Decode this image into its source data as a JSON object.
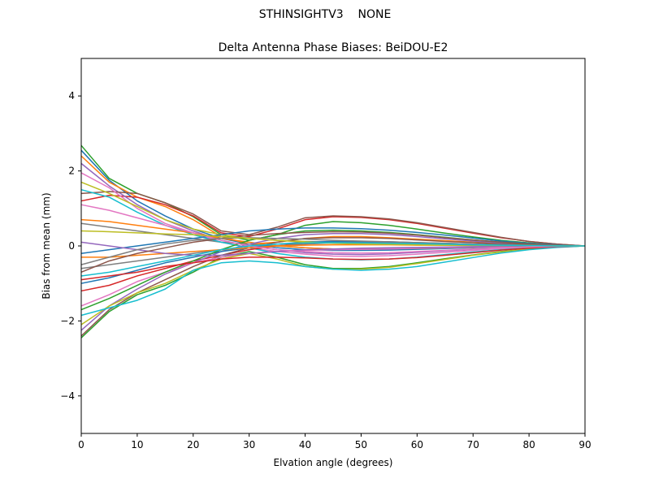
{
  "figure": {
    "suptitle": "STHINSIGHTV3    NONE"
  },
  "chart_data": {
    "type": "line",
    "title": "Delta Antenna Phase Biases: BeiDOU-E2",
    "xlabel": "Elvation angle (degrees)",
    "ylabel": "Bias from mean (mm)",
    "xlim": [
      0,
      90
    ],
    "ylim": [
      -5,
      5
    ],
    "xticks": [
      "0",
      "10",
      "20",
      "30",
      "40",
      "50",
      "60",
      "70",
      "80",
      "90"
    ],
    "yticks": [
      "4",
      "2",
      "0",
      "−2",
      "−4"
    ],
    "grid": false,
    "legend": "none",
    "x": [
      0,
      5,
      10,
      15,
      20,
      25,
      30,
      35,
      40,
      45,
      50,
      55,
      60,
      65,
      70,
      75,
      80,
      85,
      90
    ],
    "series": [
      {
        "color": "#1f77b4",
        "values": [
          2.55,
          1.75,
          1.2,
          0.8,
          0.45,
          0.2,
          0.05,
          -0.05,
          -0.1,
          -0.12,
          -0.12,
          -0.11,
          -0.09,
          -0.07,
          -0.05,
          -0.03,
          -0.02,
          -0.01,
          0
        ]
      },
      {
        "color": "#ff7f0e",
        "values": [
          2.4,
          1.7,
          1.3,
          1.05,
          0.7,
          0.25,
          0.05,
          0.1,
          0.2,
          0.25,
          0.25,
          0.22,
          0.18,
          0.14,
          0.1,
          0.06,
          0.03,
          0.01,
          0
        ]
      },
      {
        "color": "#2ca02c",
        "values": [
          2.68,
          1.8,
          1.4,
          1.15,
          0.78,
          0.3,
          0.15,
          0.3,
          0.55,
          0.65,
          0.62,
          0.55,
          0.45,
          0.34,
          0.24,
          0.15,
          0.08,
          0.03,
          0
        ]
      },
      {
        "color": "#d62728",
        "values": [
          1.2,
          1.35,
          1.3,
          1.1,
          0.8,
          0.35,
          0.25,
          0.45,
          0.7,
          0.78,
          0.76,
          0.7,
          0.6,
          0.47,
          0.34,
          0.22,
          0.12,
          0.05,
          0
        ]
      },
      {
        "color": "#9467bd",
        "values": [
          2.2,
          1.6,
          1.1,
          0.7,
          0.4,
          0.15,
          0.0,
          -0.1,
          -0.18,
          -0.22,
          -0.23,
          -0.21,
          -0.17,
          -0.13,
          -0.09,
          -0.05,
          -0.03,
          -0.01,
          0
        ]
      },
      {
        "color": "#8c564b",
        "values": [
          1.4,
          1.45,
          1.4,
          1.15,
          0.85,
          0.4,
          0.3,
          0.5,
          0.75,
          0.8,
          0.78,
          0.72,
          0.62,
          0.49,
          0.36,
          0.23,
          0.12,
          0.05,
          0
        ]
      },
      {
        "color": "#e377c2",
        "values": [
          1.95,
          1.55,
          1.0,
          0.6,
          0.35,
          0.1,
          -0.05,
          -0.15,
          -0.22,
          -0.27,
          -0.28,
          -0.26,
          -0.22,
          -0.17,
          -0.12,
          -0.07,
          -0.04,
          -0.01,
          0
        ]
      },
      {
        "color": "#7f7f7f",
        "values": [
          0.6,
          0.5,
          0.4,
          0.3,
          0.2,
          0.1,
          0.05,
          0.0,
          -0.05,
          -0.08,
          -0.09,
          -0.08,
          -0.07,
          -0.05,
          -0.04,
          -0.02,
          -0.01,
          0.0,
          0
        ]
      },
      {
        "color": "#bcbd22",
        "values": [
          1.7,
          1.4,
          1.05,
          0.7,
          0.45,
          0.3,
          0.2,
          0.15,
          0.12,
          0.1,
          0.08,
          0.07,
          0.05,
          0.04,
          0.03,
          0.02,
          0.01,
          0.0,
          0
        ]
      },
      {
        "color": "#17becf",
        "values": [
          1.5,
          1.3,
          0.9,
          0.55,
          0.3,
          0.1,
          -0.05,
          -0.2,
          -0.3,
          -0.35,
          -0.37,
          -0.35,
          -0.3,
          -0.23,
          -0.16,
          -0.1,
          -0.05,
          -0.02,
          0
        ]
      },
      {
        "color": "#1f77b4",
        "values": [
          -0.2,
          -0.1,
          0.0,
          0.1,
          0.2,
          0.3,
          0.4,
          0.45,
          0.48,
          0.48,
          0.46,
          0.42,
          0.36,
          0.29,
          0.21,
          0.13,
          0.07,
          0.03,
          0
        ]
      },
      {
        "color": "#ff7f0e",
        "values": [
          0.7,
          0.65,
          0.55,
          0.45,
          0.35,
          0.2,
          0.1,
          0.0,
          -0.05,
          -0.08,
          -0.08,
          -0.07,
          -0.06,
          -0.05,
          -0.03,
          -0.02,
          -0.01,
          0.0,
          0
        ]
      },
      {
        "color": "#2ca02c",
        "values": [
          -2.45,
          -1.75,
          -1.3,
          -1.05,
          -0.7,
          -0.3,
          -0.15,
          -0.3,
          -0.5,
          -0.6,
          -0.6,
          -0.55,
          -0.45,
          -0.34,
          -0.24,
          -0.15,
          -0.08,
          -0.03,
          0
        ]
      },
      {
        "color": "#d62728",
        "values": [
          -1.2,
          -1.05,
          -0.8,
          -0.6,
          -0.4,
          -0.25,
          -0.1,
          0.0,
          0.08,
          0.1,
          0.1,
          0.09,
          0.08,
          0.06,
          0.04,
          0.03,
          0.01,
          0.0,
          0
        ]
      },
      {
        "color": "#9467bd",
        "values": [
          -2.25,
          -1.6,
          -1.15,
          -0.75,
          -0.45,
          -0.15,
          0.05,
          0.2,
          0.3,
          0.33,
          0.33,
          0.3,
          0.25,
          0.19,
          0.13,
          0.08,
          0.04,
          0.02,
          0
        ]
      },
      {
        "color": "#8c564b",
        "values": [
          -2.4,
          -1.7,
          -1.25,
          -0.9,
          -0.55,
          -0.25,
          -0.05,
          0.1,
          0.2,
          0.22,
          0.22,
          0.2,
          0.16,
          0.12,
          0.09,
          0.05,
          0.03,
          0.01,
          0
        ]
      },
      {
        "color": "#e377c2",
        "values": [
          -1.6,
          -1.3,
          -0.95,
          -0.7,
          -0.45,
          -0.3,
          -0.2,
          -0.15,
          -0.12,
          -0.1,
          -0.09,
          -0.08,
          -0.06,
          -0.05,
          -0.03,
          -0.02,
          -0.01,
          0.0,
          0
        ]
      },
      {
        "color": "#7f7f7f",
        "values": [
          -0.6,
          -0.5,
          -0.4,
          -0.3,
          -0.2,
          -0.1,
          -0.05,
          0.0,
          0.05,
          0.08,
          0.09,
          0.08,
          0.07,
          0.05,
          0.04,
          0.02,
          0.01,
          0.0,
          0
        ]
      },
      {
        "color": "#bcbd22",
        "values": [
          -2.1,
          -1.6,
          -1.25,
          -1.0,
          -0.65,
          -0.35,
          -0.2,
          -0.35,
          -0.55,
          -0.62,
          -0.62,
          -0.57,
          -0.47,
          -0.36,
          -0.25,
          -0.16,
          -0.08,
          -0.03,
          0
        ]
      },
      {
        "color": "#17becf",
        "values": [
          -1.85,
          -1.65,
          -1.45,
          -1.15,
          -0.65,
          -0.45,
          -0.4,
          -0.45,
          -0.55,
          -0.62,
          -0.65,
          -0.62,
          -0.55,
          -0.43,
          -0.31,
          -0.19,
          -0.1,
          -0.04,
          0
        ]
      },
      {
        "color": "#1f77b4",
        "values": [
          -1.0,
          -0.85,
          -0.65,
          -0.45,
          -0.3,
          -0.15,
          -0.05,
          0.05,
          0.1,
          0.12,
          0.12,
          0.11,
          0.09,
          0.07,
          0.05,
          0.03,
          0.02,
          0.01,
          0
        ]
      },
      {
        "color": "#ff7f0e",
        "values": [
          -0.3,
          -0.3,
          -0.25,
          -0.2,
          -0.15,
          -0.1,
          -0.05,
          0.0,
          0.02,
          0.03,
          0.03,
          0.03,
          0.02,
          0.02,
          0.01,
          0.01,
          0.0,
          0.0,
          0
        ]
      },
      {
        "color": "#2ca02c",
        "values": [
          -1.7,
          -1.4,
          -1.05,
          -0.7,
          -0.4,
          -0.1,
          0.15,
          0.3,
          0.4,
          0.42,
          0.4,
          0.36,
          0.3,
          0.23,
          0.16,
          0.1,
          0.05,
          0.02,
          0
        ]
      },
      {
        "color": "#d62728",
        "values": [
          -0.9,
          -0.8,
          -0.7,
          -0.55,
          -0.45,
          -0.35,
          -0.3,
          -0.3,
          -0.32,
          -0.35,
          -0.36,
          -0.35,
          -0.31,
          -0.25,
          -0.18,
          -0.11,
          -0.06,
          -0.02,
          0
        ]
      },
      {
        "color": "#9467bd",
        "values": [
          0.1,
          0.0,
          -0.1,
          -0.2,
          -0.25,
          -0.25,
          -0.2,
          -0.15,
          -0.1,
          -0.08,
          -0.06,
          -0.05,
          -0.04,
          -0.03,
          -0.02,
          -0.01,
          -0.01,
          0.0,
          0
        ]
      },
      {
        "color": "#8c564b",
        "values": [
          -0.7,
          -0.4,
          -0.2,
          -0.05,
          0.1,
          0.2,
          0.28,
          0.33,
          0.36,
          0.38,
          0.37,
          0.34,
          0.29,
          0.22,
          0.16,
          0.1,
          0.05,
          0.02,
          0
        ]
      },
      {
        "color": "#e377c2",
        "values": [
          1.1,
          0.95,
          0.75,
          0.55,
          0.35,
          0.15,
          0.0,
          -0.1,
          -0.15,
          -0.18,
          -0.19,
          -0.18,
          -0.15,
          -0.12,
          -0.08,
          -0.05,
          -0.03,
          -0.01,
          0
        ]
      },
      {
        "color": "#7f7f7f",
        "values": [
          -0.5,
          -0.3,
          -0.1,
          0.05,
          0.15,
          0.2,
          0.22,
          0.2,
          0.18,
          0.15,
          0.13,
          0.11,
          0.09,
          0.07,
          0.05,
          0.03,
          0.02,
          0.01,
          0
        ]
      },
      {
        "color": "#bcbd22",
        "values": [
          0.4,
          0.38,
          0.35,
          0.32,
          0.3,
          0.25,
          0.2,
          0.15,
          0.1,
          0.07,
          0.05,
          0.04,
          0.03,
          0.02,
          0.02,
          0.01,
          0.01,
          0.0,
          0
        ]
      },
      {
        "color": "#17becf",
        "values": [
          -0.8,
          -0.7,
          -0.55,
          -0.4,
          -0.25,
          -0.1,
          0.0,
          0.05,
          0.08,
          0.09,
          0.08,
          0.07,
          0.06,
          0.05,
          0.03,
          0.02,
          0.01,
          0.0,
          0
        ]
      }
    ]
  }
}
